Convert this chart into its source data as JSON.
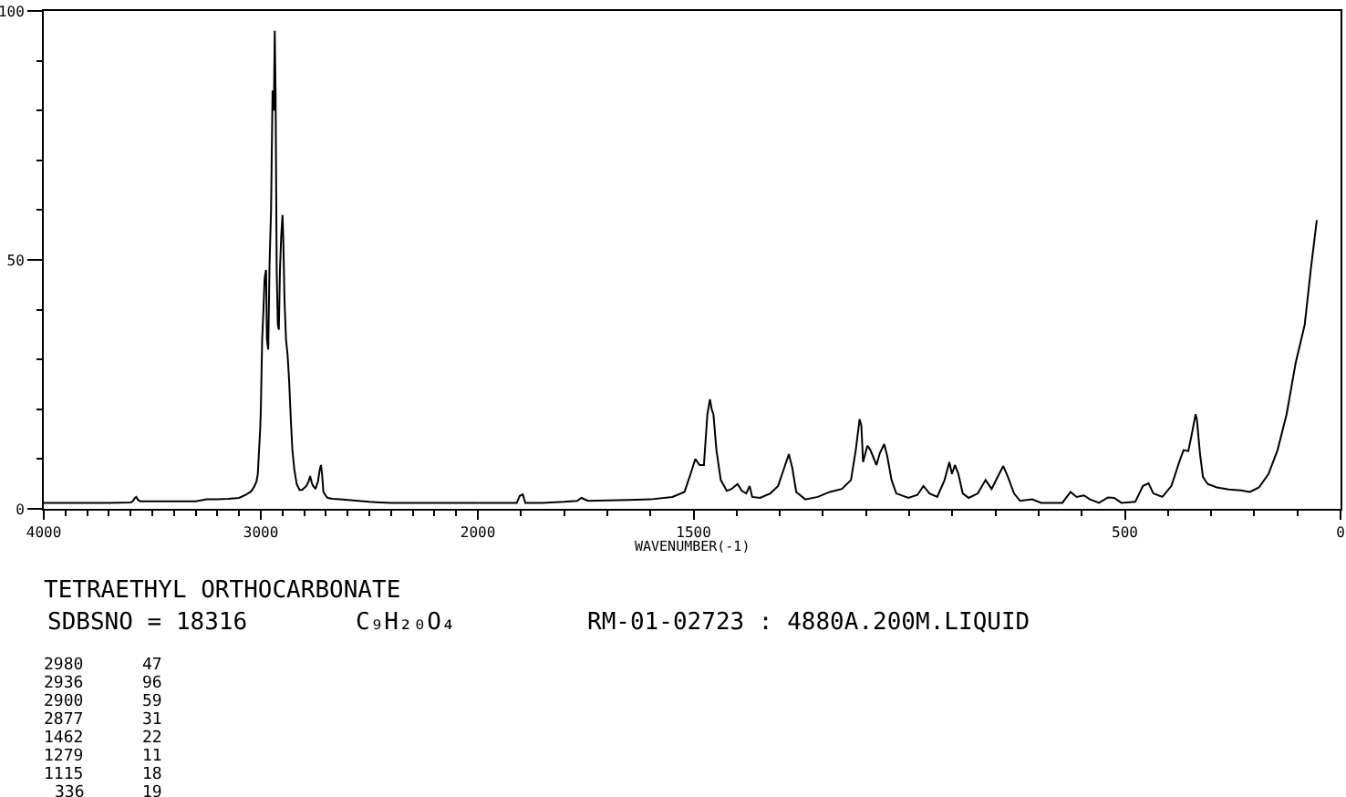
{
  "chart_data": [
    {
      "type": "line",
      "title": "TETRAETHYL ORTHOCARBONATE",
      "annotations": [
        "SDBSNO = 18316",
        "C₉H₂₀O₄",
        "RM-01-02723 : 4880A.200M.LIQUID",
        "2980",
        "47",
        "2936",
        "96",
        "2900",
        "59",
        "2877",
        "31",
        "1462",
        "22",
        "1279",
        "11",
        "1115",
        "18",
        "336",
        "19"
      ],
      "color": "#000000",
      "x": [
        4000,
        3900,
        3800,
        3700,
        3600,
        3590,
        3580,
        3574,
        3566,
        3555,
        3500,
        3400,
        3300,
        3250,
        3200,
        3150,
        3100,
        3070,
        3045,
        3030,
        3020,
        3014,
        3008,
        3003,
        3000,
        2994,
        2988,
        2983,
        2980,
        2976,
        2972,
        2966,
        2960,
        2953,
        2946,
        2940,
        2936,
        2932,
        2927,
        2922,
        2917,
        2912,
        2906,
        2900,
        2896,
        2891,
        2884,
        2877,
        2870,
        2862,
        2855,
        2846,
        2835,
        2822,
        2810,
        2800,
        2790,
        2780,
        2773,
        2765,
        2759,
        2748,
        2737,
        2728,
        2723,
        2718,
        2712,
        2700,
        2692,
        2670,
        2636,
        2600,
        2550,
        2500,
        2450,
        2400,
        2300,
        2200,
        2100,
        2000
      ],
      "values": [
        1.2,
        1.2,
        1.2,
        1.2,
        1.3,
        1.5,
        2.2,
        2.4,
        1.8,
        1.5,
        1.5,
        1.5,
        1.5,
        1.9,
        1.9,
        2,
        2.2,
        2.8,
        3.5,
        4.5,
        5.5,
        7,
        12,
        16,
        20,
        34,
        40,
        46,
        47,
        48,
        34,
        32,
        49,
        60,
        84,
        80,
        96,
        83,
        48,
        37,
        36,
        48,
        55,
        59,
        53,
        42,
        34,
        31,
        26,
        18,
        12,
        8,
        5,
        3.8,
        3.8,
        4.2,
        4.6,
        5.5,
        6.6,
        5.2,
        4.6,
        4,
        5.5,
        8,
        8.8,
        7,
        3.4,
        2.6,
        2.2,
        2,
        1.9,
        1.8,
        1.6,
        1.4,
        1.3,
        1.2,
        1.2,
        1.2,
        1.2,
        1.2
      ],
      "xlim": [
        4000,
        2000
      ],
      "ylim": [
        0,
        100
      ],
      "xticks": [
        4000,
        {
          "value": 3900,
          "label": null
        },
        {
          "value": 3800,
          "label": null
        },
        {
          "value": 3700,
          "label": null
        },
        {
          "value": 3600,
          "label": null
        },
        {
          "value": 3500,
          "label": null
        },
        {
          "value": 3400,
          "label": null
        },
        {
          "value": 3300,
          "label": null
        },
        {
          "value": 3200,
          "label": null
        },
        {
          "value": 3100,
          "label": null
        },
        3000,
        {
          "value": 2900,
          "label": null
        },
        {
          "value": 2800,
          "label": null
        },
        {
          "value": 2700,
          "label": null
        },
        {
          "value": 2600,
          "label": null
        },
        {
          "value": 2500,
          "label": null
        },
        {
          "value": 2400,
          "label": null
        },
        {
          "value": 2300,
          "label": null
        },
        {
          "value": 2200,
          "label": null
        },
        {
          "value": 2100,
          "label": null
        },
        2000
      ],
      "yticks": [
        0,
        {
          "value": 10,
          "label": null
        },
        {
          "value": 20,
          "label": null
        },
        {
          "value": 30,
          "label": null
        },
        {
          "value": 40,
          "label": null
        },
        50,
        {
          "value": 60,
          "label": null
        },
        {
          "value": 70,
          "label": null
        },
        {
          "value": 80,
          "label": null
        },
        {
          "value": 90,
          "label": null
        },
        100
      ]
    },
    {
      "type": "line",
      "xlabel": "WAVENUMBER(-1)",
      "color": "#000000",
      "x": [
        2000,
        1950,
        1910,
        1903,
        1896,
        1890,
        1850,
        1800,
        1770,
        1760,
        1745,
        1700,
        1650,
        1600,
        1549,
        1521,
        1507,
        1496,
        1486,
        1476,
        1468,
        1462,
        1458,
        1454,
        1447,
        1437,
        1423,
        1412,
        1398,
        1388,
        1378,
        1370,
        1364,
        1346,
        1322,
        1304,
        1290,
        1279,
        1271,
        1262,
        1241,
        1212,
        1184,
        1156,
        1135,
        1124,
        1115,
        1111,
        1107,
        1097,
        1090,
        1076,
        1068,
        1058,
        1051,
        1041,
        1030,
        1002,
        981,
        967,
        953,
        935,
        918,
        907,
        901,
        894,
        886,
        876,
        862,
        841,
        823,
        809,
        795,
        782,
        771,
        757,
        743,
        715,
        694,
        645,
        626,
        612,
        595,
        581,
        560,
        539,
        525,
        508,
        476,
        458,
        445,
        434,
        413,
        392,
        374,
        364,
        353,
        346,
        336,
        333,
        326,
        319,
        308,
        287,
        259,
        231,
        210,
        189,
        167,
        146,
        125,
        104,
        83,
        69,
        55
      ],
      "values": [
        1.2,
        1.2,
        1.2,
        2.6,
        2.9,
        1.2,
        1.2,
        1.4,
        1.6,
        2.2,
        1.6,
        1.7,
        1.8,
        1.9,
        2.4,
        3.4,
        7,
        10,
        8.8,
        8.8,
        19,
        22,
        20,
        19,
        11.8,
        5.8,
        3.6,
        4,
        5,
        3.6,
        3.1,
        4.6,
        2.4,
        2.2,
        3.1,
        4.6,
        8.2,
        11,
        8.2,
        3.4,
        1.9,
        2.4,
        3.4,
        4,
        5.8,
        11.8,
        18,
        16.7,
        9.4,
        12.7,
        11.8,
        8.8,
        11.2,
        13,
        10.6,
        5.8,
        3.1,
        2.2,
        2.8,
        4.6,
        3.1,
        2.4,
        5.8,
        9.4,
        7,
        8.8,
        7,
        3.1,
        2.2,
        3.1,
        5.8,
        4,
        6.4,
        8.6,
        6.4,
        3.1,
        1.6,
        1.9,
        1.2,
        1.2,
        3.4,
        2.4,
        2.7,
        1.9,
        1.2,
        2.3,
        2.2,
        1.2,
        1.4,
        4.6,
        5.1,
        3.1,
        2.4,
        4.6,
        9.4,
        11.8,
        11.6,
        14.5,
        19,
        17.9,
        11.2,
        6.4,
        5,
        4.3,
        3.9,
        3.7,
        3.4,
        4.3,
        7,
        11.8,
        19,
        29.3,
        37,
        48,
        58
      ],
      "xlim": [
        2000,
        0
      ],
      "ylim": [
        0,
        100
      ],
      "tick_labels": "x",
      "xticks": [
        {
          "value": 1900,
          "label": null
        },
        {
          "value": 1800,
          "label": null
        },
        {
          "value": 1700,
          "label": null
        },
        {
          "value": 1600,
          "label": null
        },
        1500,
        {
          "value": 1400,
          "label": null
        },
        {
          "value": 1300,
          "label": null
        },
        {
          "value": 1200,
          "label": null
        },
        {
          "value": 1100,
          "label": null
        },
        {
          "value": 1000,
          "label": null
        },
        {
          "value": 900,
          "label": null
        },
        {
          "value": 800,
          "label": null
        },
        {
          "value": 700,
          "label": null
        },
        {
          "value": 600,
          "label": null
        },
        500,
        {
          "value": 400,
          "label": null
        },
        {
          "value": 300,
          "label": null
        },
        {
          "value": 200,
          "label": null
        },
        {
          "value": 100,
          "label": null
        },
        0
      ]
    }
  ]
}
